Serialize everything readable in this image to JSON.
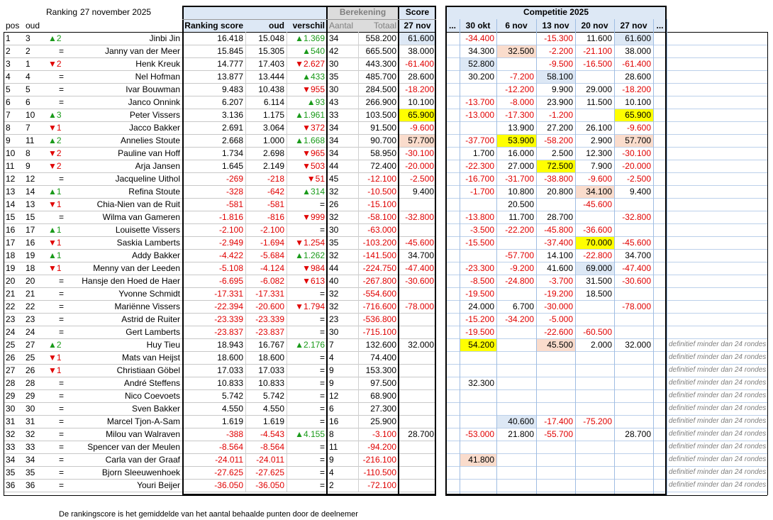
{
  "header": {
    "title": "Ranking",
    "date": "27 november 2025",
    "groups": {
      "berekening": "Berekening",
      "score": "Score",
      "competitie": "Competitie 2025"
    },
    "columns": [
      "pos",
      "oud",
      "Ranking score",
      "oud",
      "verschil",
      "Aantal",
      "Totaal",
      "27 nov",
      "...",
      "30 okt",
      "6 nov",
      "13 nov",
      "20 nov",
      "27 nov",
      "..."
    ]
  },
  "rows": [
    [
      1,
      3,
      "▲2",
      "Jinbi Jin",
      "16.418",
      "15.048",
      "▲1.369",
      "34",
      "558.200",
      "61.600",
      "-34.400",
      null,
      "-15.300",
      "11.600",
      "61.600",
      null
    ],
    [
      2,
      2,
      "=",
      "Janny van der Meer",
      "15.845",
      "15.305",
      "▲540",
      "42",
      "665.500",
      "38.000",
      "34.300",
      "32.500",
      "-2.200",
      "-21.100",
      "38.000",
      null
    ],
    [
      3,
      1,
      "▼2",
      "Henk Kreuk",
      "14.777",
      "17.403",
      "▼2.627",
      "30",
      "443.300",
      "-61.400",
      "52.800",
      null,
      "-9.500",
      "-16.500",
      "-61.400",
      null
    ],
    [
      4,
      4,
      "=",
      "Nel Hofman",
      "13.877",
      "13.444",
      "▲433",
      "35",
      "485.700",
      "28.600",
      "30.200",
      "-7.200",
      "58.100",
      null,
      "28.600",
      null
    ],
    [
      5,
      5,
      "=",
      "Ivar Bouwman",
      "9.483",
      "10.438",
      "▼955",
      "30",
      "284.500",
      "-18.200",
      null,
      "-12.200",
      "9.900",
      "29.000",
      "-18.200",
      null
    ],
    [
      6,
      6,
      "=",
      "Janco Onnink",
      "6.207",
      "6.114",
      "▲93",
      "43",
      "266.900",
      "10.100",
      "-13.700",
      "-8.000",
      "23.900",
      "11.500",
      "10.100",
      null
    ],
    [
      7,
      10,
      "▲3",
      "Peter Vissers",
      "3.136",
      "1.175",
      "▲1.961",
      "33",
      "103.500",
      "65.900",
      "-13.000",
      "-17.300",
      "-1.200",
      null,
      "65.900",
      null
    ],
    [
      8,
      7,
      "▼1",
      "Jacco Bakker",
      "2.691",
      "3.064",
      "▼372",
      "34",
      "91.500",
      "-9.600",
      null,
      "13.900",
      "27.200",
      "26.100",
      "-9.600",
      null
    ],
    [
      9,
      11,
      "▲2",
      "Annelies Stoute",
      "2.668",
      "1.000",
      "▲1.668",
      "34",
      "90.700",
      "57.700",
      "-37.700",
      "53.900",
      "-58.200",
      "2.900",
      "57.700",
      null
    ],
    [
      10,
      8,
      "▼2",
      "Pauline van Hoff",
      "1.734",
      "2.698",
      "▼965",
      "34",
      "58.950",
      "-30.100",
      "1.700",
      "16.000",
      "2.500",
      "12.300",
      "-30.100",
      null
    ],
    [
      11,
      9,
      "▼2",
      "Arja Jansen",
      "1.645",
      "2.149",
      "▼503",
      "44",
      "72.400",
      "-20.000",
      "-22.300",
      "27.000",
      "72.500",
      "7.900",
      "-20.000",
      null
    ],
    [
      12,
      12,
      "=",
      "Jacqueline Uithol",
      "-269",
      "-218",
      "▼51",
      "45",
      "-12.100",
      "-2.500",
      "-16.700",
      "-31.700",
      "-38.800",
      "-9.600",
      "-2.500",
      null
    ],
    [
      13,
      14,
      "▲1",
      "Refina Stoute",
      "-328",
      "-642",
      "▲314",
      "32",
      "-10.500",
      "9.400",
      "-1.700",
      "10.800",
      "20.800",
      "34.100",
      "9.400",
      null
    ],
    [
      14,
      13,
      "▼1",
      "Chia-Nien van de Ruit",
      "-581",
      "-581",
      "=",
      "26",
      "-15.100",
      null,
      null,
      "20.500",
      null,
      "-45.600",
      null,
      null
    ],
    [
      15,
      15,
      "=",
      "Wilma van Gameren",
      "-1.816",
      "-816",
      "▼999",
      "32",
      "-58.100",
      "-32.800",
      "-13.800",
      "11.700",
      "28.700",
      null,
      "-32.800",
      null
    ],
    [
      16,
      17,
      "▲1",
      "Louisette Vissers",
      "-2.100",
      "-2.100",
      "=",
      "30",
      "-63.000",
      null,
      "-3.500",
      "-22.200",
      "-45.800",
      "-36.600",
      null,
      null
    ],
    [
      17,
      16,
      "▼1",
      "Saskia Lamberts",
      "-2.949",
      "-1.694",
      "▼1.254",
      "35",
      "-103.200",
      "-45.600",
      "-15.500",
      null,
      "-37.400",
      "70.000",
      "-45.600",
      null
    ],
    [
      18,
      19,
      "▲1",
      "Addy Bakker",
      "-4.422",
      "-5.684",
      "▲1.262",
      "32",
      "-141.500",
      "34.700",
      null,
      "-57.700",
      "14.100",
      "-22.800",
      "34.700",
      null
    ],
    [
      19,
      18,
      "▼1",
      "Menny van der Leeden",
      "-5.108",
      "-4.124",
      "▼984",
      "44",
      "-224.750",
      "-47.400",
      "-23.300",
      "-9.200",
      "41.600",
      "69.000",
      "-47.400",
      null
    ],
    [
      20,
      20,
      "=",
      "Hansje den Hoed de Haer",
      "-6.695",
      "-6.082",
      "▼613",
      "40",
      "-267.800",
      "-30.600",
      "-8.500",
      "-24.800",
      "-3.700",
      "31.500",
      "-30.600",
      null
    ],
    [
      21,
      21,
      "=",
      "Yvonne Schmidt",
      "-17.331",
      "-17.331",
      "=",
      "32",
      "-554.600",
      null,
      "-19.500",
      null,
      "-19.200",
      "18.500",
      null,
      null
    ],
    [
      22,
      22,
      "=",
      "Mariënne Vissers",
      "-22.394",
      "-20.600",
      "▼1.794",
      "32",
      "-716.600",
      "-78.000",
      "24.000",
      "6.700",
      "-30.000",
      null,
      "-78.000",
      null
    ],
    [
      23,
      23,
      "=",
      "Astrid de Ruiter",
      "-23.339",
      "-23.339",
      "=",
      "23",
      "-536.800",
      null,
      "-15.200",
      "-34.200",
      "-5.000",
      null,
      null,
      null
    ],
    [
      24,
      24,
      "=",
      "Gert Lamberts",
      "-23.837",
      "-23.837",
      "=",
      "30",
      "-715.100",
      null,
      "-19.500",
      null,
      "-22.600",
      "-60.500",
      null,
      null
    ],
    [
      25,
      27,
      "▲2",
      "Huy Tieu",
      "18.943",
      "16.767",
      "▲2.176",
      "7",
      "132.600",
      "32.000",
      "54.200",
      null,
      "45.500",
      "2.000",
      "32.000",
      "definitief minder dan 24 rondes"
    ],
    [
      26,
      25,
      "▼1",
      "Mats van Heijst",
      "18.600",
      "18.600",
      "=",
      "4",
      "74.400",
      null,
      null,
      null,
      null,
      null,
      null,
      "definitief minder dan 24 rondes"
    ],
    [
      27,
      26,
      "▼1",
      "Christiaan Göbel",
      "17.033",
      "17.033",
      "=",
      "9",
      "153.300",
      null,
      null,
      null,
      null,
      null,
      null,
      "definitief minder dan 24 rondes"
    ],
    [
      28,
      28,
      "=",
      "André Steffens",
      "10.833",
      "10.833",
      "=",
      "9",
      "97.500",
      null,
      "32.300",
      null,
      null,
      null,
      null,
      "definitief minder dan 24 rondes"
    ],
    [
      29,
      29,
      "=",
      "Nico Coevoets",
      "5.742",
      "5.742",
      "=",
      "12",
      "68.900",
      null,
      null,
      null,
      null,
      null,
      null,
      "definitief minder dan 24 rondes"
    ],
    [
      30,
      30,
      "=",
      "Sven Bakker",
      "4.550",
      "4.550",
      "=",
      "6",
      "27.300",
      null,
      null,
      null,
      null,
      null,
      null,
      "definitief minder dan 24 rondes"
    ],
    [
      31,
      31,
      "=",
      "Marcel Tjon-A-Sam",
      "1.619",
      "1.619",
      "=",
      "16",
      "25.900",
      null,
      null,
      "40.600",
      "-17.400",
      "-75.200",
      null,
      "definitief minder dan 24 rondes"
    ],
    [
      32,
      32,
      "=",
      "Milou van Walraven",
      "-388",
      "-4.543",
      "▲4.155",
      "8",
      "-3.100",
      "28.700",
      "-53.000",
      "21.800",
      "-55.700",
      null,
      "28.700",
      "definitief minder dan 24 rondes"
    ],
    [
      33,
      33,
      "=",
      "Spencer van der Meulen",
      "-8.564",
      "-8.564",
      "=",
      "11",
      "-94.200",
      null,
      null,
      null,
      null,
      null,
      null,
      "definitief minder dan 24 rondes"
    ],
    [
      34,
      34,
      "=",
      "Carla van der Graaf",
      "-24.011",
      "-24.011",
      "=",
      "9",
      "-216.100",
      null,
      "41.800",
      null,
      null,
      null,
      null,
      "definitief minder dan 24 rondes"
    ],
    [
      35,
      35,
      "=",
      "Bjorn Sleeuwenhoek",
      "-27.625",
      "-27.625",
      "=",
      "4",
      "-110.500",
      null,
      null,
      null,
      null,
      null,
      null,
      "definitief minder dan 24 rondes"
    ],
    [
      36,
      36,
      "=",
      "Youri Beijer",
      "-36.050",
      "-36.050",
      "=",
      "2",
      "-72.100",
      null,
      null,
      null,
      null,
      null,
      null,
      "definitief minder dan 24 rondes"
    ]
  ],
  "footer": "De rankingscore is het gemiddelde van het aantal behaalde punten door de deelnemer"
}
